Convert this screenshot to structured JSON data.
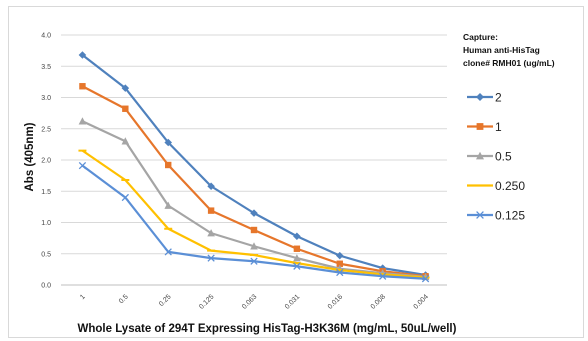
{
  "chart_data": {
    "type": "line",
    "xlabel": "Whole Lysate of 294T Expressing HisTag-H3K36M (mg/mL, 50uL/well)",
    "ylabel": "Abs (405nm)",
    "categories": [
      "1",
      "0.5",
      "0.25",
      "0.125",
      "0.063",
      "0.031",
      "0.016",
      "0.008",
      "0.004"
    ],
    "y_ticks": [
      "0.0",
      "0.5",
      "1.0",
      "1.5",
      "2.0",
      "2.5",
      "3.0",
      "3.5",
      "4.0"
    ],
    "ylim": [
      0,
      4
    ],
    "grid": true,
    "legend": {
      "title_lines": [
        "Capture:",
        "Human anti-HisTag",
        "clone# RMH01 (ug/mL)"
      ],
      "placement": "right"
    },
    "series": [
      {
        "name": "2",
        "color": "#4f81bd",
        "marker": "diamond",
        "values": [
          3.68,
          3.15,
          2.28,
          1.58,
          1.15,
          0.78,
          0.47,
          0.27,
          0.16
        ]
      },
      {
        "name": "1",
        "color": "#e6762b",
        "marker": "square",
        "values": [
          3.18,
          2.82,
          1.92,
          1.19,
          0.88,
          0.58,
          0.34,
          0.22,
          0.14
        ]
      },
      {
        "name": "0.5",
        "color": "#a5a5a5",
        "marker": "triangle",
        "values": [
          2.62,
          2.3,
          1.27,
          0.83,
          0.62,
          0.43,
          0.26,
          0.19,
          0.13
        ]
      },
      {
        "name": "0.250",
        "color": "#ffc000",
        "marker": "dash",
        "values": [
          2.15,
          1.68,
          0.9,
          0.55,
          0.48,
          0.35,
          0.24,
          0.17,
          0.12
        ]
      },
      {
        "name": "0.125",
        "color": "#5b8fd6",
        "marker": "x",
        "values": [
          1.91,
          1.4,
          0.53,
          0.43,
          0.38,
          0.3,
          0.2,
          0.14,
          0.1
        ]
      }
    ]
  }
}
